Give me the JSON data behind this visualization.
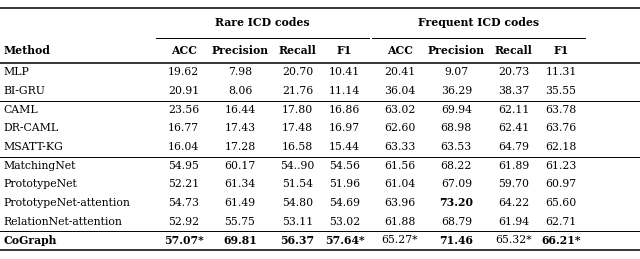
{
  "group_headers": [
    "Rare ICD codes",
    "Frequent ICD codes"
  ],
  "col_headers": [
    "Method",
    "ACC",
    "Precision",
    "Recall",
    "F1",
    "ACC",
    "Precision",
    "Recall",
    "F1"
  ],
  "rows": [
    [
      "MLP",
      "19.62",
      "7.98",
      "20.70",
      "10.41",
      "20.41",
      "9.07",
      "20.73",
      "11.31"
    ],
    [
      "BI-GRU",
      "20.91",
      "8.06",
      "21.76",
      "11.14",
      "36.04",
      "36.29",
      "38.37",
      "35.55"
    ],
    [
      "CAML",
      "23.56",
      "16.44",
      "17.80",
      "16.86",
      "63.02",
      "69.94",
      "62.11",
      "63.78"
    ],
    [
      "DR-CAML",
      "16.77",
      "17.43",
      "17.48",
      "16.97",
      "62.60",
      "68.98",
      "62.41",
      "63.76"
    ],
    [
      "MSATT-KG",
      "16.04",
      "17.28",
      "16.58",
      "15.44",
      "63.33",
      "63.53",
      "64.79",
      "62.18"
    ],
    [
      "MatchingNet",
      "54.95",
      "60.17",
      "54..90",
      "54.56",
      "61.56",
      "68.22",
      "61.89",
      "61.23"
    ],
    [
      "PrototypeNet",
      "52.21",
      "61.34",
      "51.54",
      "51.96",
      "61.04",
      "67.09",
      "59.70",
      "60.97"
    ],
    [
      "PrototypeNet-attention",
      "54.73",
      "61.49",
      "54.80",
      "54.69",
      "63.96",
      "73.20",
      "64.22",
      "65.60"
    ],
    [
      "RelationNet-attention",
      "52.92",
      "55.75",
      "53.11",
      "53.02",
      "61.88",
      "68.79",
      "61.94",
      "62.71"
    ],
    [
      "CoGraph",
      "57.07*",
      "69.81",
      "56.37",
      "57.64*",
      "65.27*",
      "71.46",
      "65.32*",
      "66.21*"
    ]
  ],
  "bold_cells": {
    "7_6": true,
    "9_1": true,
    "9_2": true,
    "9_3": true,
    "9_4": true,
    "9_6": true,
    "9_8": true,
    "9_9": true
  },
  "group_sep_after": [
    1,
    4,
    8
  ],
  "rare_cols": [
    1,
    2,
    3,
    4
  ],
  "freq_cols": [
    5,
    6,
    7,
    8
  ],
  "font_size": 7.8,
  "font_family": "DejaVu Serif"
}
